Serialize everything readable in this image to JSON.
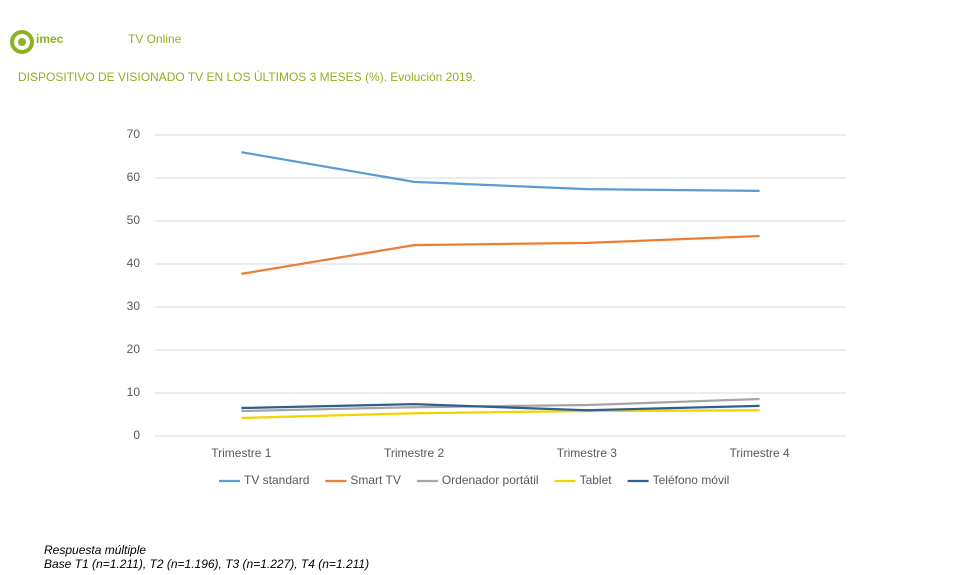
{
  "header": {
    "logo": "imec",
    "title": "TV Online"
  },
  "chart_data": {
    "type": "line",
    "title": "DISPOSITIVO DE VISIONADO TV EN LOS ÚLTIMOS 3 MESES (%). Evolución 2019.",
    "categories": [
      "Trimestre 1",
      "Trimestre 2",
      "Trimestre 3",
      "Trimestre 4"
    ],
    "series": [
      {
        "name": "TV standard",
        "color": "#5b9bd5",
        "values": [
          66.0,
          59.1,
          57.4,
          57.0
        ]
      },
      {
        "name": "Smart TV",
        "color": "#ed7d31",
        "values": [
          37.7,
          44.4,
          44.9,
          46.5
        ]
      },
      {
        "name": "Ordenador portátil",
        "color": "#a5a5a5",
        "values": [
          5.8,
          6.7,
          7.2,
          8.6
        ]
      },
      {
        "name": "Tablet",
        "color": "#f0d400",
        "values": [
          4.2,
          5.3,
          5.8,
          6.0
        ]
      },
      {
        "name": "Teléfono móvil",
        "color": "#2f5f8f",
        "values": [
          6.5,
          7.4,
          6.0,
          7.0
        ]
      }
    ],
    "ylim": [
      0,
      70
    ],
    "yticks": [
      0,
      10,
      20,
      30,
      40,
      50,
      60,
      70
    ],
    "grid": true,
    "legend": "bottom"
  },
  "notes": [
    "Respuesta múltiple",
    "Base T1 (n=1.211), T2 (n=1.196), T3 (n=1.227), T4 (n=1.211)"
  ]
}
